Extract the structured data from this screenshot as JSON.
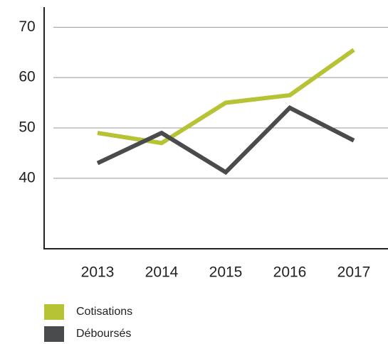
{
  "chart_data": {
    "type": "line",
    "categories": [
      "2013",
      "2014",
      "2015",
      "2016",
      "2017"
    ],
    "series": [
      {
        "name": "Cotisations",
        "color": "#b5c334",
        "values": [
          49,
          47,
          55,
          56.5,
          65.5
        ]
      },
      {
        "name": "Déboursés",
        "color": "#4a4b4d",
        "values": [
          43,
          49,
          41.2,
          54,
          47.5
        ]
      }
    ],
    "ylim": [
      26,
      74
    ],
    "yticks": [
      40,
      50,
      60,
      70
    ],
    "grid": true
  }
}
